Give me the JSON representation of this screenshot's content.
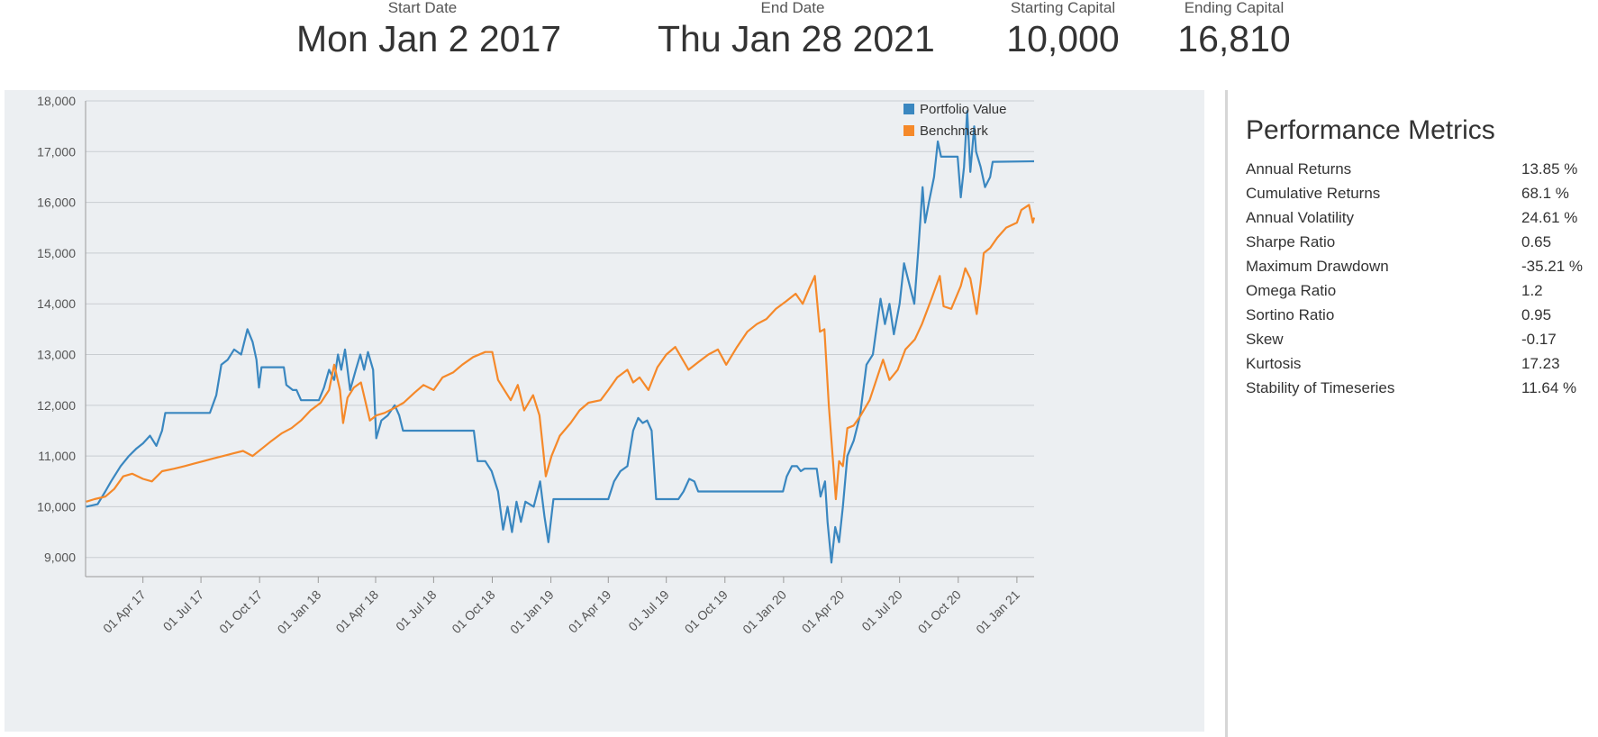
{
  "summary": [
    {
      "label": "Start Date",
      "value": "Mon Jan 2 2017"
    },
    {
      "label": "End Date",
      "value": "Thu Jan 28 2021"
    },
    {
      "label": "Starting Capital",
      "value": "10,000"
    },
    {
      "label": "Ending Capital",
      "value": "16,810"
    }
  ],
  "metrics": {
    "title": "Performance Metrics",
    "rows": [
      {
        "name": "Annual Returns",
        "value": "13.85 %"
      },
      {
        "name": "Cumulative Returns",
        "value": "68.1 %"
      },
      {
        "name": "Annual Volatility",
        "value": "24.61 %"
      },
      {
        "name": "Sharpe Ratio",
        "value": "0.65"
      },
      {
        "name": "Maximum Drawdown",
        "value": "-35.21 %"
      },
      {
        "name": "Omega Ratio",
        "value": "1.2"
      },
      {
        "name": "Sortino Ratio",
        "value": "0.95"
      },
      {
        "name": "Skew",
        "value": "-0.17"
      },
      {
        "name": "Kurtosis",
        "value": "17.23"
      },
      {
        "name": "Stability of Timeseries",
        "value": "11.64 %"
      }
    ]
  },
  "chart_data": {
    "type": "line",
    "x_type": "date",
    "xlim": [
      "2017-01-01",
      "2021-01-28"
    ],
    "ylim": [
      8800,
      18000
    ],
    "yticks": [
      9000,
      10000,
      11000,
      12000,
      13000,
      14000,
      15000,
      16000,
      17000,
      18000
    ],
    "ytick_labels": [
      "9,000",
      "10,000",
      "11,000",
      "12,000",
      "13,000",
      "14,000",
      "15,000",
      "16,000",
      "17,000",
      "18,000"
    ],
    "xticks": [
      "2017-04-01",
      "2017-07-01",
      "2017-10-01",
      "2018-01-01",
      "2018-04-01",
      "2018-07-01",
      "2018-10-01",
      "2019-01-01",
      "2019-04-01",
      "2019-07-01",
      "2019-10-01",
      "2020-01-01",
      "2020-04-01",
      "2020-07-01",
      "2020-10-01",
      "2021-01-01"
    ],
    "xtick_labels": [
      "01 Apr 17",
      "01 Jul 17",
      "01 Oct 17",
      "01 Jan 18",
      "01 Apr 18",
      "01 Jul 18",
      "01 Oct 18",
      "01 Jan 19",
      "01 Apr 19",
      "01 Jul 19",
      "01 Oct 19",
      "01 Jan 20",
      "01 Apr 20",
      "01 Jul 20",
      "01 Oct 20",
      "01 Jan 21"
    ],
    "grid": true,
    "legend_position": "top-right",
    "series": [
      {
        "name": "Portfolio Value",
        "color": "#3a87c0",
        "points": [
          [
            "2017-01-02",
            10000
          ],
          [
            "2017-01-20",
            10050
          ],
          [
            "2017-02-01",
            10300
          ],
          [
            "2017-02-10",
            10500
          ],
          [
            "2017-02-25",
            10800
          ],
          [
            "2017-03-10",
            11000
          ],
          [
            "2017-03-22",
            11150
          ],
          [
            "2017-04-01",
            11250
          ],
          [
            "2017-04-12",
            11400
          ],
          [
            "2017-04-22",
            11200
          ],
          [
            "2017-05-01",
            11500
          ],
          [
            "2017-05-06",
            11850
          ],
          [
            "2017-07-15",
            11850
          ],
          [
            "2017-07-25",
            12200
          ],
          [
            "2017-08-02",
            12800
          ],
          [
            "2017-08-12",
            12900
          ],
          [
            "2017-08-22",
            13100
          ],
          [
            "2017-09-02",
            13000
          ],
          [
            "2017-09-12",
            13500
          ],
          [
            "2017-09-20",
            13250
          ],
          [
            "2017-09-26",
            12900
          ],
          [
            "2017-09-30",
            12350
          ],
          [
            "2017-10-04",
            12750
          ],
          [
            "2017-11-08",
            12750
          ],
          [
            "2017-11-12",
            12400
          ],
          [
            "2017-11-22",
            12300
          ],
          [
            "2017-11-28",
            12300
          ],
          [
            "2017-12-05",
            12100
          ],
          [
            "2018-01-02",
            12100
          ],
          [
            "2018-01-10",
            12350
          ],
          [
            "2018-01-18",
            12700
          ],
          [
            "2018-01-26",
            12500
          ],
          [
            "2018-02-01",
            13000
          ],
          [
            "2018-02-06",
            12700
          ],
          [
            "2018-02-12",
            13100
          ],
          [
            "2018-02-20",
            12300
          ],
          [
            "2018-03-01",
            12700
          ],
          [
            "2018-03-08",
            13000
          ],
          [
            "2018-03-14",
            12700
          ],
          [
            "2018-03-20",
            13050
          ],
          [
            "2018-03-28",
            12700
          ],
          [
            "2018-04-02",
            11350
          ],
          [
            "2018-04-10",
            11700
          ],
          [
            "2018-04-20",
            11800
          ],
          [
            "2018-05-01",
            12000
          ],
          [
            "2018-05-08",
            11800
          ],
          [
            "2018-05-14",
            11500
          ],
          [
            "2018-09-02",
            11500
          ],
          [
            "2018-09-08",
            10900
          ],
          [
            "2018-09-20",
            10900
          ],
          [
            "2018-09-30",
            10700
          ],
          [
            "2018-10-10",
            10300
          ],
          [
            "2018-10-18",
            9550
          ],
          [
            "2018-10-25",
            10000
          ],
          [
            "2018-11-01",
            9500
          ],
          [
            "2018-11-08",
            10100
          ],
          [
            "2018-11-15",
            9700
          ],
          [
            "2018-11-22",
            10100
          ],
          [
            "2018-12-05",
            10000
          ],
          [
            "2018-12-15",
            10500
          ],
          [
            "2018-12-22",
            9800
          ],
          [
            "2018-12-28",
            9300
          ],
          [
            "2019-01-05",
            10150
          ],
          [
            "2019-04-01",
            10150
          ],
          [
            "2019-04-10",
            10500
          ],
          [
            "2019-04-20",
            10700
          ],
          [
            "2019-05-01",
            10800
          ],
          [
            "2019-05-10",
            11500
          ],
          [
            "2019-05-18",
            11750
          ],
          [
            "2019-05-25",
            11650
          ],
          [
            "2019-06-01",
            11700
          ],
          [
            "2019-06-08",
            11500
          ],
          [
            "2019-06-15",
            10150
          ],
          [
            "2019-07-20",
            10150
          ],
          [
            "2019-07-28",
            10300
          ],
          [
            "2019-08-06",
            10550
          ],
          [
            "2019-08-14",
            10500
          ],
          [
            "2019-08-20",
            10300
          ],
          [
            "2019-12-31",
            10300
          ],
          [
            "2020-01-06",
            10600
          ],
          [
            "2020-01-14",
            10800
          ],
          [
            "2020-01-22",
            10800
          ],
          [
            "2020-01-28",
            10700
          ],
          [
            "2020-02-03",
            10750
          ],
          [
            "2020-02-22",
            10750
          ],
          [
            "2020-02-28",
            10200
          ],
          [
            "2020-03-06",
            10500
          ],
          [
            "2020-03-10",
            9700
          ],
          [
            "2020-03-16",
            8900
          ],
          [
            "2020-03-22",
            9600
          ],
          [
            "2020-03-28",
            9300
          ],
          [
            "2020-04-03",
            10000
          ],
          [
            "2020-04-10",
            11000
          ],
          [
            "2020-04-20",
            11300
          ],
          [
            "2020-04-30",
            11800
          ],
          [
            "2020-05-10",
            12800
          ],
          [
            "2020-05-20",
            13000
          ],
          [
            "2020-06-01",
            14100
          ],
          [
            "2020-06-08",
            13600
          ],
          [
            "2020-06-15",
            14000
          ],
          [
            "2020-06-22",
            13400
          ],
          [
            "2020-07-01",
            14000
          ],
          [
            "2020-07-08",
            14800
          ],
          [
            "2020-07-16",
            14400
          ],
          [
            "2020-07-24",
            14000
          ],
          [
            "2020-07-30",
            15000
          ],
          [
            "2020-08-06",
            16300
          ],
          [
            "2020-08-10",
            15600
          ],
          [
            "2020-08-16",
            16000
          ],
          [
            "2020-08-24",
            16500
          ],
          [
            "2020-08-30",
            17200
          ],
          [
            "2020-09-04",
            16900
          ],
          [
            "2020-09-30",
            16900
          ],
          [
            "2020-10-05",
            16100
          ],
          [
            "2020-10-10",
            16700
          ],
          [
            "2020-10-15",
            17800
          ],
          [
            "2020-10-20",
            16600
          ],
          [
            "2020-10-26",
            17500
          ],
          [
            "2020-10-29",
            17000
          ],
          [
            "2020-11-05",
            16700
          ],
          [
            "2020-11-12",
            16300
          ],
          [
            "2020-11-20",
            16500
          ],
          [
            "2020-11-24",
            16800
          ],
          [
            "2021-01-28",
            16810
          ]
        ]
      },
      {
        "name": "Benchmark",
        "color": "#f5892a",
        "points": [
          [
            "2017-01-02",
            10100
          ],
          [
            "2017-01-15",
            10150
          ],
          [
            "2017-02-01",
            10200
          ],
          [
            "2017-02-15",
            10350
          ],
          [
            "2017-03-01",
            10600
          ],
          [
            "2017-03-15",
            10650
          ],
          [
            "2017-04-01",
            10550
          ],
          [
            "2017-04-15",
            10500
          ],
          [
            "2017-05-01",
            10700
          ],
          [
            "2017-05-20",
            10750
          ],
          [
            "2017-06-05",
            10800
          ],
          [
            "2017-06-20",
            10850
          ],
          [
            "2017-07-05",
            10900
          ],
          [
            "2017-07-20",
            10950
          ],
          [
            "2017-08-05",
            11000
          ],
          [
            "2017-08-20",
            11050
          ],
          [
            "2017-09-05",
            11100
          ],
          [
            "2017-09-20",
            11000
          ],
          [
            "2017-10-05",
            11150
          ],
          [
            "2017-10-20",
            11300
          ],
          [
            "2017-11-05",
            11450
          ],
          [
            "2017-11-20",
            11550
          ],
          [
            "2017-12-05",
            11700
          ],
          [
            "2017-12-20",
            11900
          ],
          [
            "2018-01-05",
            12050
          ],
          [
            "2018-01-18",
            12300
          ],
          [
            "2018-01-26",
            12800
          ],
          [
            "2018-02-04",
            12300
          ],
          [
            "2018-02-09",
            11650
          ],
          [
            "2018-02-16",
            12150
          ],
          [
            "2018-02-26",
            12350
          ],
          [
            "2018-03-09",
            12450
          ],
          [
            "2018-03-23",
            11700
          ],
          [
            "2018-04-02",
            11800
          ],
          [
            "2018-04-15",
            11850
          ],
          [
            "2018-05-01",
            11950
          ],
          [
            "2018-05-15",
            12050
          ],
          [
            "2018-06-01",
            12250
          ],
          [
            "2018-06-15",
            12400
          ],
          [
            "2018-07-01",
            12300
          ],
          [
            "2018-07-15",
            12550
          ],
          [
            "2018-08-01",
            12650
          ],
          [
            "2018-08-15",
            12800
          ],
          [
            "2018-09-01",
            12950
          ],
          [
            "2018-09-20",
            13050
          ],
          [
            "2018-10-01",
            13050
          ],
          [
            "2018-10-10",
            12500
          ],
          [
            "2018-10-20",
            12300
          ],
          [
            "2018-10-30",
            12100
          ],
          [
            "2018-11-10",
            12400
          ],
          [
            "2018-11-20",
            11900
          ],
          [
            "2018-12-04",
            12200
          ],
          [
            "2018-12-14",
            11800
          ],
          [
            "2018-12-20",
            11100
          ],
          [
            "2018-12-24",
            10600
          ],
          [
            "2019-01-02",
            11000
          ],
          [
            "2019-01-15",
            11400
          ],
          [
            "2019-02-01",
            11650
          ],
          [
            "2019-02-15",
            11900
          ],
          [
            "2019-03-01",
            12050
          ],
          [
            "2019-03-20",
            12100
          ],
          [
            "2019-04-01",
            12300
          ],
          [
            "2019-04-15",
            12550
          ],
          [
            "2019-05-01",
            12700
          ],
          [
            "2019-05-10",
            12450
          ],
          [
            "2019-05-20",
            12550
          ],
          [
            "2019-06-03",
            12300
          ],
          [
            "2019-06-17",
            12750
          ],
          [
            "2019-07-01",
            13000
          ],
          [
            "2019-07-15",
            13150
          ],
          [
            "2019-08-05",
            12700
          ],
          [
            "2019-08-20",
            12850
          ],
          [
            "2019-09-05",
            13000
          ],
          [
            "2019-09-20",
            13100
          ],
          [
            "2019-10-03",
            12800
          ],
          [
            "2019-10-20",
            13150
          ],
          [
            "2019-11-05",
            13450
          ],
          [
            "2019-11-20",
            13600
          ],
          [
            "2019-12-05",
            13700
          ],
          [
            "2019-12-20",
            13900
          ],
          [
            "2020-01-05",
            14050
          ],
          [
            "2020-01-20",
            14200
          ],
          [
            "2020-01-31",
            14000
          ],
          [
            "2020-02-10",
            14300
          ],
          [
            "2020-02-19",
            14550
          ],
          [
            "2020-02-27",
            13450
          ],
          [
            "2020-03-05",
            13500
          ],
          [
            "2020-03-12",
            12000
          ],
          [
            "2020-03-23",
            10150
          ],
          [
            "2020-03-28",
            10900
          ],
          [
            "2020-04-03",
            10800
          ],
          [
            "2020-04-10",
            11550
          ],
          [
            "2020-04-20",
            11600
          ],
          [
            "2020-05-01",
            11800
          ],
          [
            "2020-05-15",
            12100
          ],
          [
            "2020-06-05",
            12900
          ],
          [
            "2020-06-15",
            12500
          ],
          [
            "2020-06-28",
            12700
          ],
          [
            "2020-07-10",
            13100
          ],
          [
            "2020-07-25",
            13300
          ],
          [
            "2020-08-05",
            13600
          ],
          [
            "2020-08-20",
            14100
          ],
          [
            "2020-09-02",
            14550
          ],
          [
            "2020-09-08",
            13950
          ],
          [
            "2020-09-20",
            13900
          ],
          [
            "2020-10-05",
            14350
          ],
          [
            "2020-10-12",
            14700
          ],
          [
            "2020-10-20",
            14500
          ],
          [
            "2020-10-30",
            13800
          ],
          [
            "2020-11-05",
            14400
          ],
          [
            "2020-11-10",
            15000
          ],
          [
            "2020-11-20",
            15100
          ],
          [
            "2020-12-01",
            15300
          ],
          [
            "2020-12-15",
            15500
          ],
          [
            "2021-01-01",
            15600
          ],
          [
            "2021-01-08",
            15850
          ],
          [
            "2021-01-20",
            15950
          ],
          [
            "2021-01-26",
            15600
          ],
          [
            "2021-01-28",
            15700
          ]
        ]
      }
    ]
  }
}
